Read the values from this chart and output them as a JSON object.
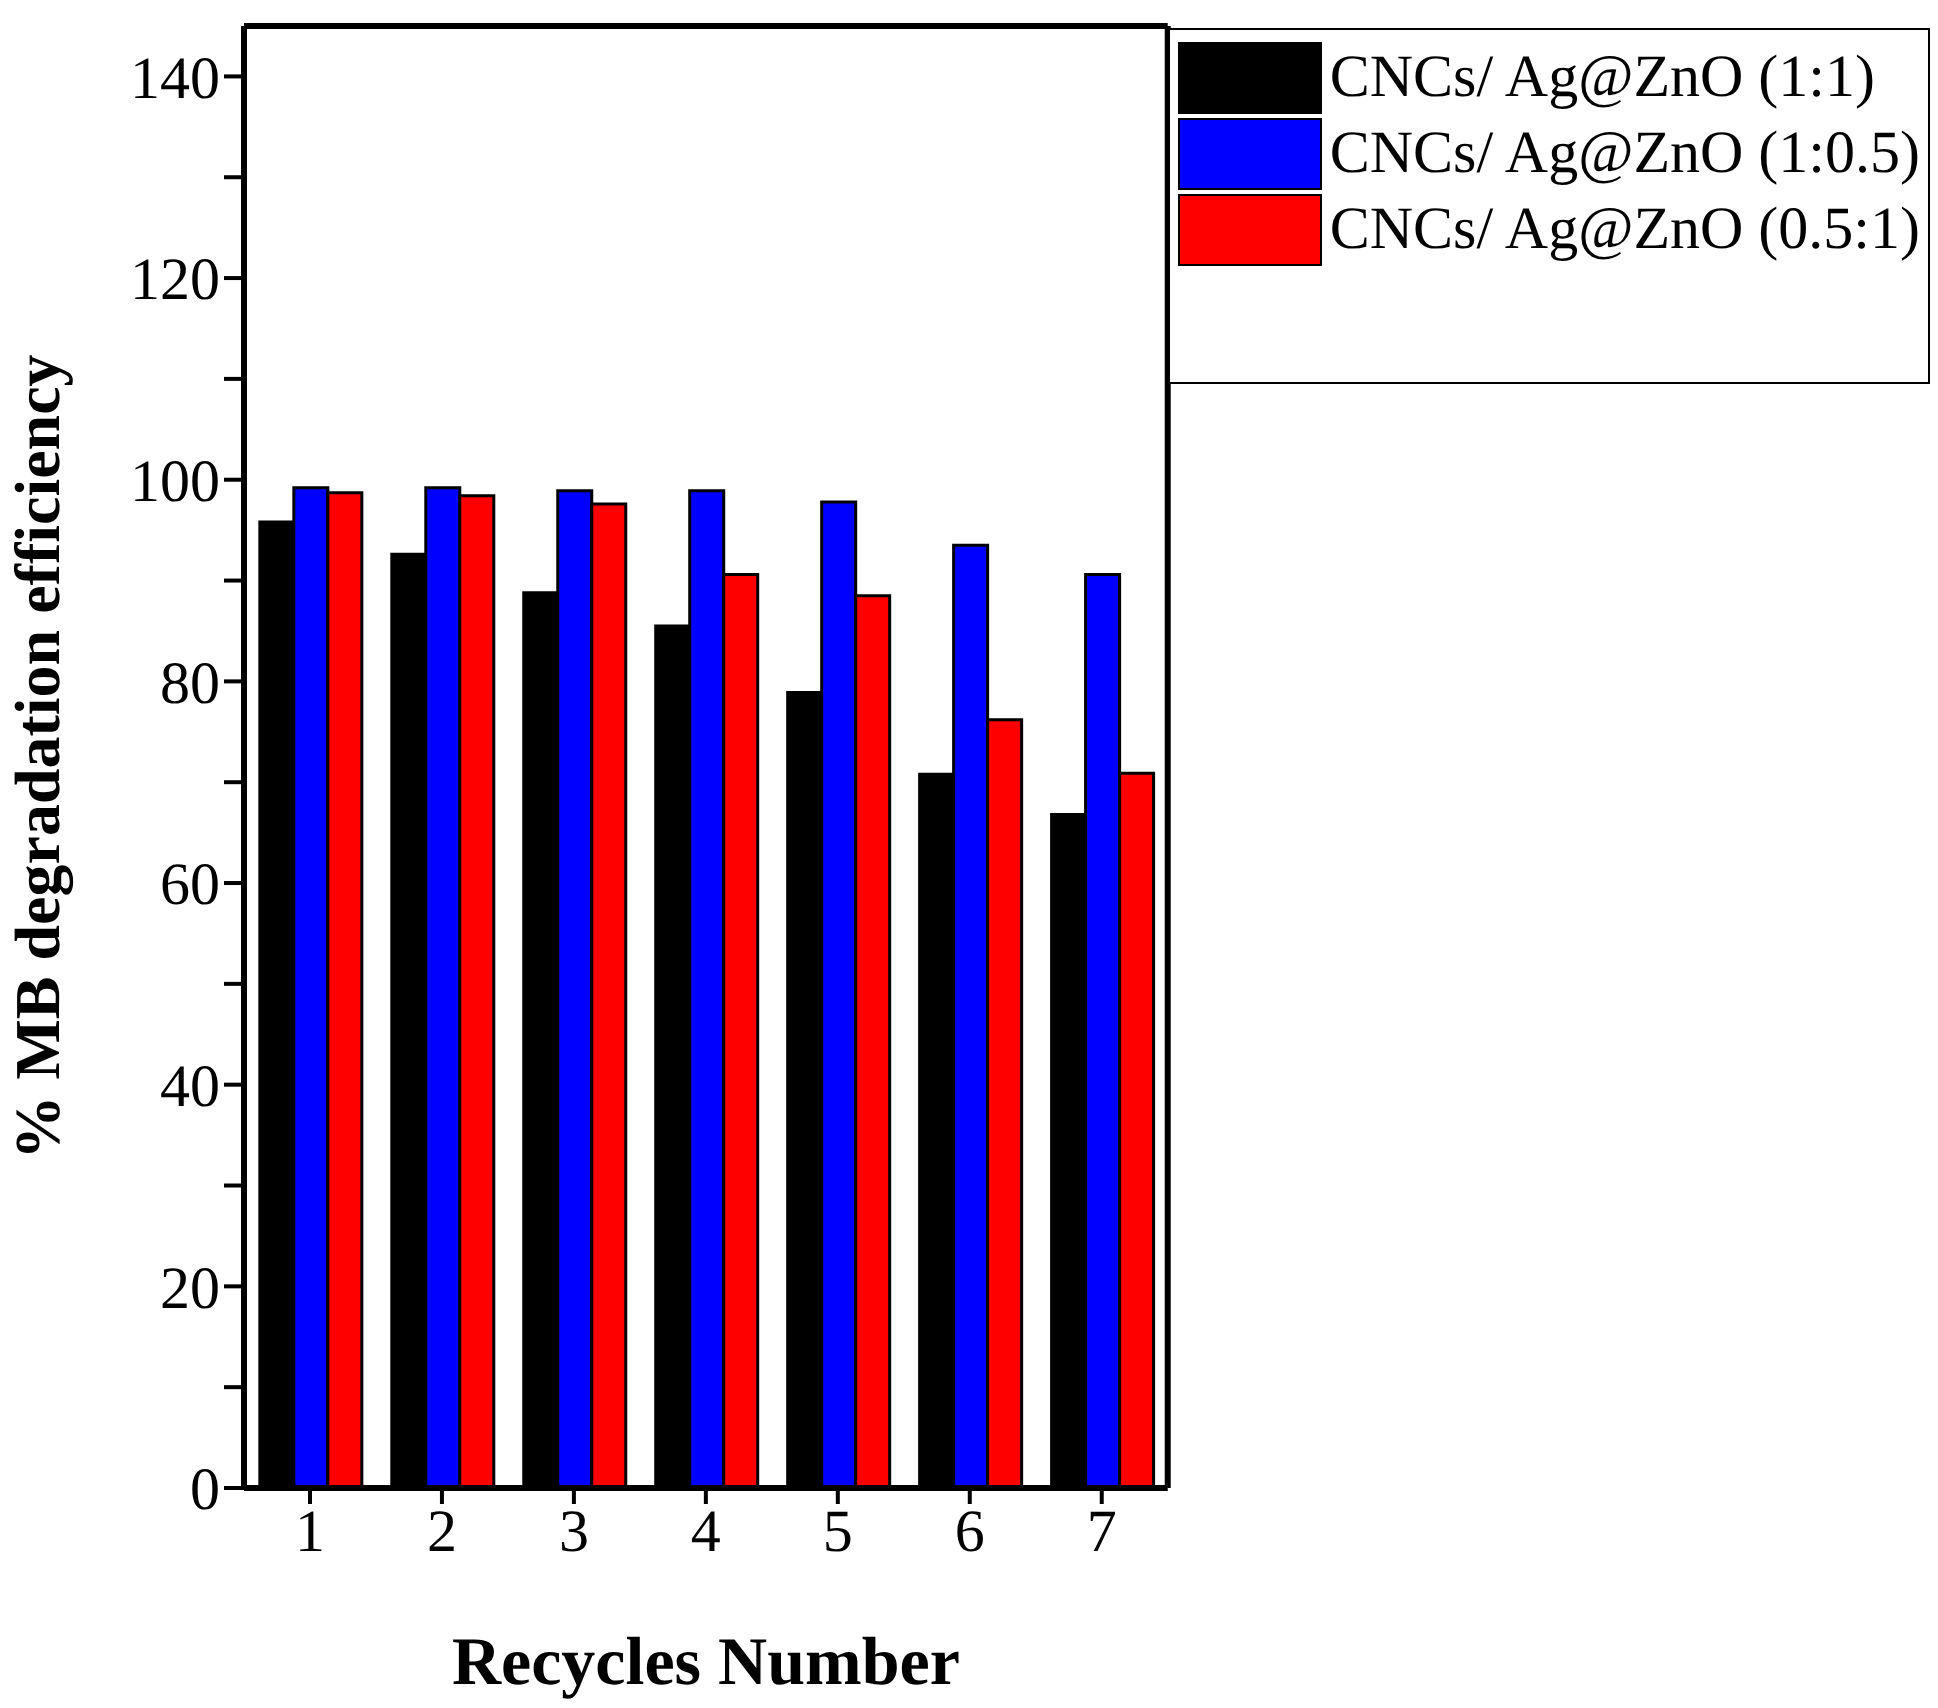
{
  "chart_data": {
    "type": "bar",
    "xlabel": "Recycles Number",
    "ylabel": "% MB degradation efficiency",
    "categories": [
      "1",
      "2",
      "3",
      "4",
      "5",
      "6",
      "7"
    ],
    "series": [
      {
        "name": "CNCs/ Ag@ZnO (1:1)",
        "color": "#000000",
        "values": [
          95.8,
          92.6,
          88.8,
          85.5,
          78.9,
          70.8,
          66.8
        ]
      },
      {
        "name": "CNCs/ Ag@ZnO (1:0.5)",
        "color": "#0000ff",
        "values": [
          99.2,
          99.2,
          98.9,
          98.9,
          97.8,
          93.5,
          90.6
        ]
      },
      {
        "name": "CNCs/ Ag@ZnO (0.5:1)",
        "color": "#ff0000",
        "values": [
          98.7,
          98.4,
          97.6,
          90.6,
          88.5,
          76.2,
          70.9
        ]
      }
    ],
    "ylim": [
      0,
      145
    ],
    "yticks": [
      0,
      {
        "value": 10,
        "label": null
      },
      20,
      {
        "value": 30,
        "label": null
      },
      40,
      {
        "value": 50,
        "label": null
      },
      60,
      {
        "value": 70,
        "label": null
      },
      80,
      {
        "value": 90,
        "label": null
      },
      100,
      {
        "value": 110,
        "label": null
      },
      120,
      {
        "value": 130,
        "label": null
      },
      140
    ],
    "grid": false,
    "legend": "top right"
  }
}
